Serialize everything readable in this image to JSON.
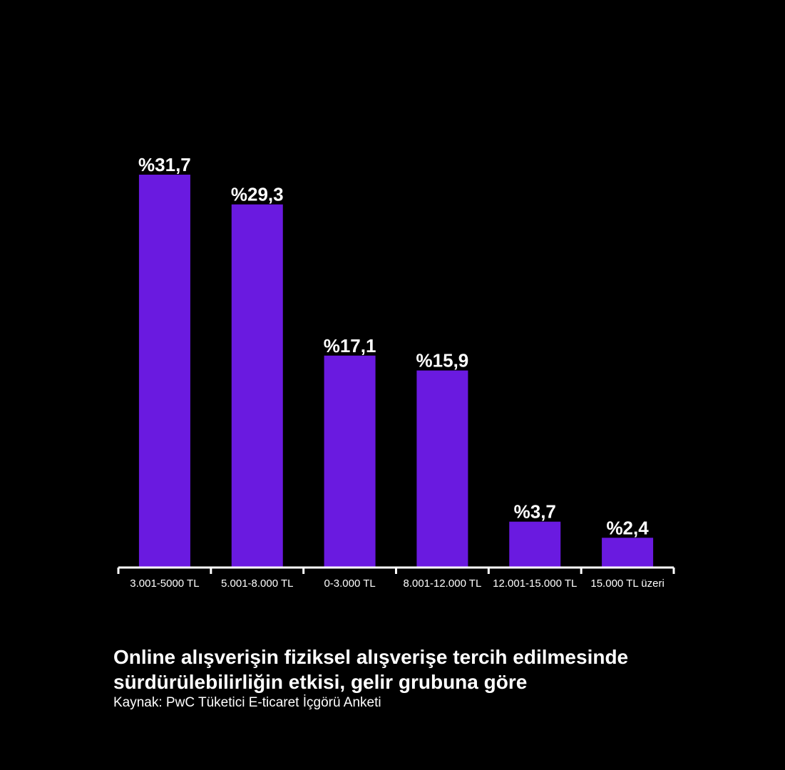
{
  "chart_data": {
    "type": "bar",
    "categories": [
      "3.001-5000 TL",
      "5.001-8.000 TL",
      "0-3.000 TL",
      "8.001-12.000 TL",
      "12.001-15.000 TL",
      "15.000 TL üzeri"
    ],
    "values": [
      31.7,
      29.3,
      17.1,
      15.9,
      3.7,
      2.4
    ],
    "value_labels": [
      "%31,7",
      "%29,3",
      "%17,1",
      "%15,9",
      "%3,7",
      "%2,4"
    ],
    "ylim": [
      0,
      31.7
    ],
    "grid": false,
    "legend": "none",
    "bar_color": "#6a1ae0",
    "axis_color": "#ffffff"
  },
  "caption": {
    "title_line1": "Online alışverişin fiziksel alışverişe tercih edilmesinde",
    "title_line2": "sürdürülebilirliğin etkisi, gelir grubuna göre",
    "source": "Kaynak: PwC Tüketici E-ticaret İçgörü Anketi"
  }
}
